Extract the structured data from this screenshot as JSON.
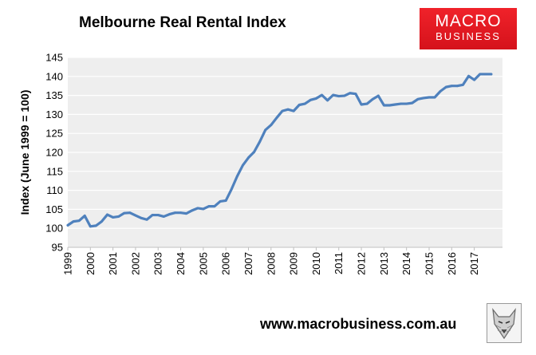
{
  "header": {
    "title": "Melbourne Real Rental Index",
    "logo_line1": "MACRO",
    "logo_line2": "BUSINESS"
  },
  "footer": {
    "url": "www.macrobusiness.com.au"
  },
  "colors": {
    "line": "#4f81bd",
    "plot_bg": "#eeeeee",
    "grid": "#ffffff",
    "logo_red": "#e2151e"
  },
  "chart_data": {
    "type": "line",
    "title": "Melbourne Real Rental Index",
    "xlabel": "",
    "ylabel": "Index (June 1999 = 100)",
    "ylim": [
      95,
      145
    ],
    "yticks": [
      95,
      100,
      105,
      110,
      115,
      120,
      125,
      130,
      135,
      140,
      145
    ],
    "xlim": [
      1999.0,
      2017.75
    ],
    "xticks": [
      "1999",
      "2000",
      "2001",
      "2002",
      "2003",
      "2004",
      "2005",
      "2006",
      "2007",
      "2008",
      "2009",
      "2010",
      "2011",
      "2012",
      "2013",
      "2014",
      "2015",
      "2016",
      "2017"
    ],
    "grid": true,
    "legend": "none",
    "series": [
      {
        "x": [
          1999.0,
          1999.25,
          1999.5,
          1999.75,
          2000.0,
          2000.25,
          2000.5,
          2000.75,
          2001.0,
          2001.25,
          2001.5,
          2001.75,
          2002.0,
          2002.25,
          2002.5,
          2002.75,
          2003.0,
          2003.25,
          2003.5,
          2003.75,
          2004.0,
          2004.25,
          2004.5,
          2004.75,
          2005.0,
          2005.25,
          2005.5,
          2005.75,
          2006.0,
          2006.25,
          2006.5,
          2006.75,
          2007.0,
          2007.25,
          2007.5,
          2007.75,
          2008.0,
          2008.25,
          2008.5,
          2008.75,
          2009.0,
          2009.25,
          2009.5,
          2009.75,
          2010.0,
          2010.25,
          2010.5,
          2010.75,
          2011.0,
          2011.25,
          2011.5,
          2011.75,
          2012.0,
          2012.25,
          2012.5,
          2012.75,
          2013.0,
          2013.25,
          2013.5,
          2013.75,
          2014.0,
          2014.25,
          2014.5,
          2014.75,
          2015.0,
          2015.25,
          2015.5,
          2015.75,
          2016.0,
          2016.25,
          2016.5,
          2016.75,
          2017.0,
          2017.25,
          2017.5,
          2017.75
        ],
        "values": [
          100.8,
          101.8,
          102.0,
          103.3,
          100.5,
          100.7,
          101.8,
          103.6,
          102.9,
          103.1,
          104.0,
          104.1,
          103.4,
          102.7,
          102.3,
          103.5,
          103.5,
          103.1,
          103.7,
          104.1,
          104.1,
          103.9,
          104.7,
          105.3,
          105.1,
          105.8,
          105.8,
          107.1,
          107.3,
          110.3,
          113.7,
          116.6,
          118.6,
          120.1,
          122.8,
          125.9,
          127.2,
          129.1,
          130.9,
          131.3,
          130.9,
          132.5,
          132.8,
          133.8,
          134.2,
          135.1,
          133.7,
          135.1,
          134.8,
          134.9,
          135.6,
          135.4,
          132.6,
          132.8,
          134.0,
          134.9,
          132.4,
          132.4,
          132.6,
          132.8,
          132.8,
          133.0,
          134.0,
          134.3,
          134.5,
          134.5,
          136.1,
          137.2,
          137.5,
          137.5,
          137.8,
          140.1,
          139.1,
          140.6,
          140.6,
          140.6
        ]
      }
    ]
  }
}
